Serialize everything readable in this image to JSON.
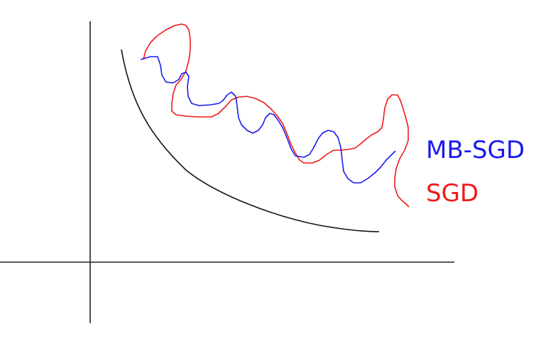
{
  "labels": {
    "mbsgd": "MB-SGD",
    "sgd": "SGD"
  },
  "colors": {
    "axes": "#222222",
    "curve": "#111111",
    "mbsgd": "#1a1aee",
    "sgd": "#ee1a1a",
    "background": "#ffffff"
  }
}
